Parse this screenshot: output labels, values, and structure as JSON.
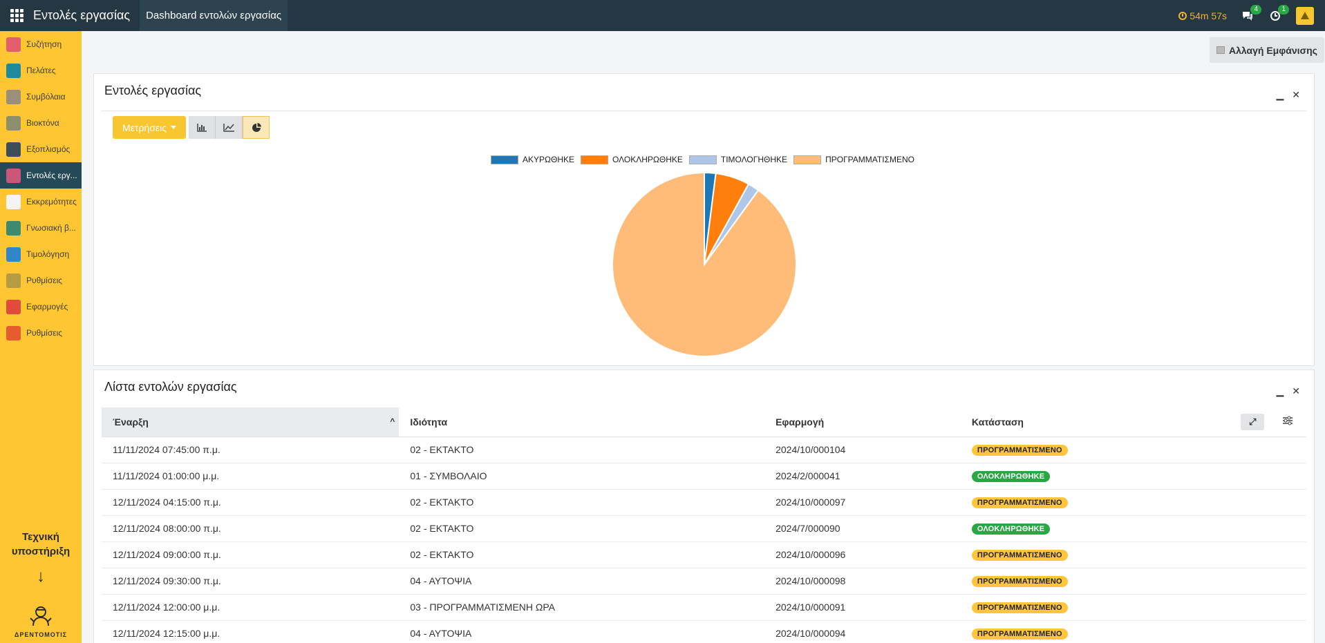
{
  "topbar": {
    "app_title": "Εντολές εργασίας",
    "menu_item": "Dashboard εντολών εργασίας",
    "timer": "54m 57s",
    "messages_count": "4",
    "activities_count": "1"
  },
  "sidebar": {
    "items": [
      {
        "label": "Συζήτηση",
        "icon": "chat-icon",
        "color": "#e35d6a"
      },
      {
        "label": "Πελάτες",
        "icon": "contacts-icon",
        "color": "#1f8a9c"
      },
      {
        "label": "Συμβόλαια",
        "icon": "contract-icon",
        "color": "#9a8f7a"
      },
      {
        "label": "Βιοκτόνα",
        "icon": "biocide-icon",
        "color": "#8c8f6a"
      },
      {
        "label": "Εξοπλισμός",
        "icon": "equipment-icon",
        "color": "#3b4e5a"
      },
      {
        "label": "Εντολές εργ...",
        "icon": "workorder-icon",
        "color": "#c9577a"
      },
      {
        "label": "Εκκρεμότητες",
        "icon": "pending-icon",
        "color": "#f4f4f4"
      },
      {
        "label": "Γνωσιακή β...",
        "icon": "knowledge-icon",
        "color": "#3e8a6e"
      },
      {
        "label": "Τιμολόγηση",
        "icon": "invoice-icon",
        "color": "#2f86c9"
      },
      {
        "label": "Ρυθμίσεις",
        "icon": "settings-icon",
        "color": "#b59c44"
      },
      {
        "label": "Εφαρμογές",
        "icon": "apps-icon",
        "color": "#e04b3c"
      },
      {
        "label": "Ρυθμίσεις",
        "icon": "settings-alt-icon",
        "color": "#e65c2e"
      }
    ],
    "support_line1": "Τεχνική",
    "support_line2": "υποστήριξη",
    "support_arrow": "↓",
    "logo_text": "ΔΡΕΝΤΟΜΟΤΙΣ"
  },
  "view_toggle": "Αλλαγή Εμφάνισης",
  "chart_panel": {
    "title": "Εντολές εργασίας",
    "metrics_label": "Μετρήσεις",
    "chart_data": {
      "type": "pie",
      "categories": [
        "ΑΚΥΡΩΘΗΚΕ",
        "ΟΛΟΚΛΗΡΩΘΗΚΕ",
        "ΤΙΜΟΛΟΓΗΘΗΚΕ",
        "ΠΡΟΓΡΑΜΜΑΤΙΣΜΕΝΟ"
      ],
      "values": [
        2,
        6,
        2,
        90
      ],
      "colors": [
        "#1f77b4",
        "#ff7f0e",
        "#aec7e8",
        "#ffbb78"
      ],
      "legend": "top"
    }
  },
  "list_panel": {
    "title": "Λίστα εντολών εργασίας",
    "columns": [
      "Έναρξη",
      "Ιδιότητα",
      "Εφαρμογή",
      "Κατάσταση"
    ],
    "rows": [
      {
        "start": "11/11/2024 07:45:00 π.μ.",
        "type": "02 - ΕΚΤΑΚΤΟ",
        "ref": "2024/10/000104",
        "status": "ΠΡΟΓΡΑΜΜΑΤΙΣΜΕΝΟ"
      },
      {
        "start": "11/11/2024 01:00:00 μ.μ.",
        "type": "01 - ΣΥΜΒΟΛΑΙΟ",
        "ref": "2024/2/000041",
        "status": "ΟΛΟΚΛΗΡΩΘΗΚΕ"
      },
      {
        "start": "12/11/2024 04:15:00 π.μ.",
        "type": "02 - ΕΚΤΑΚΤΟ",
        "ref": "2024/10/000097",
        "status": "ΠΡΟΓΡΑΜΜΑΤΙΣΜΕΝΟ"
      },
      {
        "start": "12/11/2024 08:00:00 π.μ.",
        "type": "02 - ΕΚΤΑΚΤΟ",
        "ref": "2024/7/000090",
        "status": "ΟΛΟΚΛΗΡΩΘΗΚΕ"
      },
      {
        "start": "12/11/2024 09:00:00 π.μ.",
        "type": "02 - ΕΚΤΑΚΤΟ",
        "ref": "2024/10/000096",
        "status": "ΠΡΟΓΡΑΜΜΑΤΙΣΜΕΝΟ"
      },
      {
        "start": "12/11/2024 09:30:00 π.μ.",
        "type": "04 - ΑΥΤΟΨΙΑ",
        "ref": "2024/10/000098",
        "status": "ΠΡΟΓΡΑΜΜΑΤΙΣΜΕΝΟ"
      },
      {
        "start": "12/11/2024 12:00:00 μ.μ.",
        "type": "03 - ΠΡΟΓΡΑΜΜΑΤΙΣΜΕΝΗ ΩΡΑ",
        "ref": "2024/10/000091",
        "status": "ΠΡΟΓΡΑΜΜΑΤΙΣΜΕΝΟ"
      },
      {
        "start": "12/11/2024 12:15:00 μ.μ.",
        "type": "04 - ΑΥΤΟΨΙΑ",
        "ref": "2024/10/000094",
        "status": "ΠΡΟΓΡΑΜΜΑΤΙΣΜΕΝΟ"
      }
    ]
  }
}
